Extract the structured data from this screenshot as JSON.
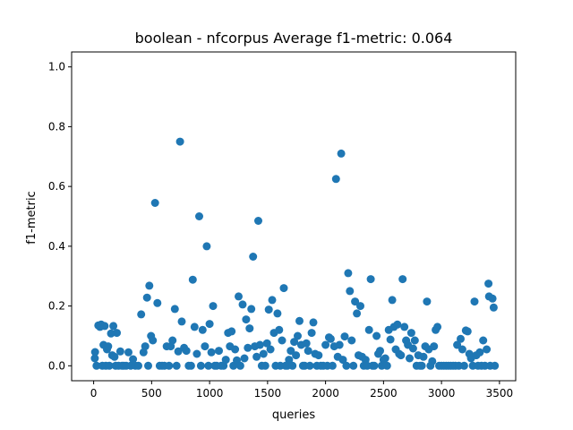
{
  "chart_data": {
    "type": "scatter",
    "title": "boolean - nfcorpus  Average f1-metric: 0.064",
    "xlabel": "queries",
    "ylabel": "f1-metric",
    "xlim": [
      -190,
      3640
    ],
    "ylim": [
      -0.05,
      1.05
    ],
    "xticks": [
      0,
      500,
      1000,
      1500,
      2000,
      2500,
      3000,
      3500
    ],
    "yticks": [
      0.0,
      0.2,
      0.4,
      0.6,
      0.8,
      1.0
    ],
    "xtick_labels": [
      "0",
      "500",
      "1000",
      "1500",
      "2000",
      "2500",
      "3000",
      "3500"
    ],
    "ytick_labels": [
      "0.0",
      "0.2",
      "0.4",
      "0.6",
      "0.8",
      "1.0"
    ],
    "grid": false,
    "point_color": "#1f77b4",
    "points": [
      [
        10,
        0.025
      ],
      [
        12,
        0.046
      ],
      [
        25,
        0.0
      ],
      [
        40,
        0.135
      ],
      [
        55,
        0.13
      ],
      [
        65,
        0.138
      ],
      [
        75,
        0.0
      ],
      [
        85,
        0.07
      ],
      [
        95,
        0.133
      ],
      [
        105,
        0.0
      ],
      [
        115,
        0.055
      ],
      [
        125,
        0.065
      ],
      [
        135,
        0.0
      ],
      [
        150,
        0.108
      ],
      [
        160,
        0.035
      ],
      [
        170,
        0.133
      ],
      [
        180,
        0.03
      ],
      [
        190,
        0.0
      ],
      [
        200,
        0.11
      ],
      [
        215,
        0.0
      ],
      [
        230,
        0.048
      ],
      [
        245,
        0.0
      ],
      [
        260,
        0.0
      ],
      [
        280,
        0.0
      ],
      [
        300,
        0.045
      ],
      [
        320,
        0.0
      ],
      [
        340,
        0.022
      ],
      [
        360,
        0.0
      ],
      [
        385,
        0.0
      ],
      [
        410,
        0.172
      ],
      [
        430,
        0.045
      ],
      [
        445,
        0.065
      ],
      [
        460,
        0.228
      ],
      [
        470,
        0.0
      ],
      [
        480,
        0.268
      ],
      [
        495,
        0.1
      ],
      [
        510,
        0.085
      ],
      [
        530,
        0.545
      ],
      [
        550,
        0.21
      ],
      [
        570,
        0.0
      ],
      [
        590,
        0.0
      ],
      [
        610,
        0.0
      ],
      [
        630,
        0.065
      ],
      [
        650,
        0.0
      ],
      [
        665,
        0.065
      ],
      [
        680,
        0.085
      ],
      [
        700,
        0.19
      ],
      [
        715,
        0.0
      ],
      [
        730,
        0.048
      ],
      [
        745,
        0.75
      ],
      [
        760,
        0.148
      ],
      [
        780,
        0.06
      ],
      [
        800,
        0.05
      ],
      [
        820,
        0.0
      ],
      [
        840,
        0.0
      ],
      [
        855,
        0.288
      ],
      [
        870,
        0.13
      ],
      [
        890,
        0.04
      ],
      [
        910,
        0.5
      ],
      [
        925,
        0.0
      ],
      [
        940,
        0.12
      ],
      [
        960,
        0.065
      ],
      [
        975,
        0.4
      ],
      [
        990,
        0.0
      ],
      [
        1000,
        0.14
      ],
      [
        1015,
        0.045
      ],
      [
        1030,
        0.2
      ],
      [
        1045,
        0.0
      ],
      [
        1060,
        0.0
      ],
      [
        1080,
        0.05
      ],
      [
        1100,
        0.0
      ],
      [
        1120,
        0.0
      ],
      [
        1140,
        0.02
      ],
      [
        1160,
        0.11
      ],
      [
        1175,
        0.065
      ],
      [
        1190,
        0.115
      ],
      [
        1205,
        0.0
      ],
      [
        1220,
        0.055
      ],
      [
        1235,
        0.018
      ],
      [
        1250,
        0.232
      ],
      [
        1265,
        0.0
      ],
      [
        1285,
        0.205
      ],
      [
        1300,
        0.025
      ],
      [
        1315,
        0.155
      ],
      [
        1330,
        0.06
      ],
      [
        1345,
        0.125
      ],
      [
        1360,
        0.19
      ],
      [
        1375,
        0.365
      ],
      [
        1390,
        0.065
      ],
      [
        1405,
        0.03
      ],
      [
        1420,
        0.485
      ],
      [
        1435,
        0.07
      ],
      [
        1450,
        0.0
      ],
      [
        1465,
        0.04
      ],
      [
        1480,
        0.0
      ],
      [
        1495,
        0.075
      ],
      [
        1510,
        0.188
      ],
      [
        1525,
        0.055
      ],
      [
        1540,
        0.22
      ],
      [
        1555,
        0.11
      ],
      [
        1570,
        0.0
      ],
      [
        1585,
        0.175
      ],
      [
        1600,
        0.12
      ],
      [
        1610,
        0.0
      ],
      [
        1625,
        0.085
      ],
      [
        1640,
        0.26
      ],
      [
        1655,
        0.0
      ],
      [
        1670,
        0.0
      ],
      [
        1685,
        0.02
      ],
      [
        1700,
        0.05
      ],
      [
        1715,
        0.0
      ],
      [
        1730,
        0.08
      ],
      [
        1745,
        0.035
      ],
      [
        1760,
        0.1
      ],
      [
        1775,
        0.15
      ],
      [
        1790,
        0.07
      ],
      [
        1805,
        0.0
      ],
      [
        1820,
        0.0
      ],
      [
        1835,
        0.075
      ],
      [
        1850,
        0.05
      ],
      [
        1865,
        0.0
      ],
      [
        1880,
        0.11
      ],
      [
        1895,
        0.145
      ],
      [
        1910,
        0.04
      ],
      [
        1925,
        0.0
      ],
      [
        1940,
        0.035
      ],
      [
        1960,
        0.0
      ],
      [
        1980,
        0.0
      ],
      [
        2000,
        0.07
      ],
      [
        2015,
        0.0
      ],
      [
        2030,
        0.095
      ],
      [
        2045,
        0.09
      ],
      [
        2060,
        0.0
      ],
      [
        2075,
        0.065
      ],
      [
        2090,
        0.625
      ],
      [
        2105,
        0.03
      ],
      [
        2120,
        0.07
      ],
      [
        2135,
        0.71
      ],
      [
        2150,
        0.02
      ],
      [
        2165,
        0.098
      ],
      [
        2180,
        0.0
      ],
      [
        2195,
        0.31
      ],
      [
        2210,
        0.25
      ],
      [
        2225,
        0.085
      ],
      [
        2240,
        0.0
      ],
      [
        2255,
        0.215
      ],
      [
        2270,
        0.175
      ],
      [
        2285,
        0.035
      ],
      [
        2300,
        0.2
      ],
      [
        2315,
        0.03
      ],
      [
        2330,
        0.0
      ],
      [
        2345,
        0.02
      ],
      [
        2360,
        0.0
      ],
      [
        2375,
        0.12
      ],
      [
        2390,
        0.29
      ],
      [
        2405,
        0.0
      ],
      [
        2420,
        0.0
      ],
      [
        2440,
        0.1
      ],
      [
        2455,
        0.04
      ],
      [
        2470,
        0.05
      ],
      [
        2485,
        0.0
      ],
      [
        2500,
        0.02
      ],
      [
        2515,
        0.025
      ],
      [
        2530,
        0.0
      ],
      [
        2545,
        0.12
      ],
      [
        2560,
        0.088
      ],
      [
        2575,
        0.22
      ],
      [
        2590,
        0.13
      ],
      [
        2605,
        0.055
      ],
      [
        2620,
        0.138
      ],
      [
        2635,
        0.04
      ],
      [
        2650,
        0.035
      ],
      [
        2665,
        0.29
      ],
      [
        2680,
        0.13
      ],
      [
        2695,
        0.085
      ],
      [
        2710,
        0.07
      ],
      [
        2725,
        0.025
      ],
      [
        2740,
        0.11
      ],
      [
        2755,
        0.058
      ],
      [
        2770,
        0.085
      ],
      [
        2785,
        0.0
      ],
      [
        2800,
        0.035
      ],
      [
        2815,
        0.0
      ],
      [
        2830,
        0.0
      ],
      [
        2845,
        0.03
      ],
      [
        2860,
        0.065
      ],
      [
        2875,
        0.215
      ],
      [
        2890,
        0.055
      ],
      [
        2905,
        0.0
      ],
      [
        2920,
        0.015
      ],
      [
        2935,
        0.065
      ],
      [
        2950,
        0.12
      ],
      [
        2965,
        0.13
      ],
      [
        2980,
        0.0
      ],
      [
        3000,
        0.0
      ],
      [
        3020,
        0.0
      ],
      [
        3040,
        0.0
      ],
      [
        3060,
        0.0
      ],
      [
        3080,
        0.0
      ],
      [
        3100,
        0.0
      ],
      [
        3120,
        0.0
      ],
      [
        3135,
        0.07
      ],
      [
        3150,
        0.0
      ],
      [
        3165,
        0.09
      ],
      [
        3180,
        0.055
      ],
      [
        3195,
        0.0
      ],
      [
        3210,
        0.118
      ],
      [
        3225,
        0.115
      ],
      [
        3240,
        0.04
      ],
      [
        3255,
        0.025
      ],
      [
        3270,
        0.0
      ],
      [
        3285,
        0.215
      ],
      [
        3300,
        0.035
      ],
      [
        3315,
        0.0
      ],
      [
        3330,
        0.045
      ],
      [
        3345,
        0.0
      ],
      [
        3360,
        0.085
      ],
      [
        3375,
        0.0
      ],
      [
        3390,
        0.055
      ],
      [
        3405,
        0.275
      ],
      [
        3410,
        0.232
      ],
      [
        3420,
        0.0
      ],
      [
        3440,
        0.225
      ],
      [
        3450,
        0.195
      ],
      [
        3460,
        0.0
      ]
    ]
  }
}
